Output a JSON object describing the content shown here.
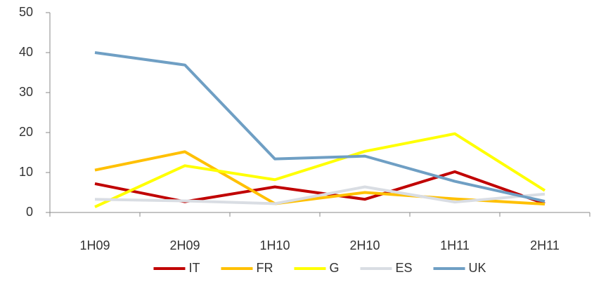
{
  "chart_data": {
    "type": "line",
    "categories": [
      "1H09",
      "2H09",
      "1H10",
      "2H10",
      "1H11",
      "2H11"
    ],
    "series": [
      {
        "name": "IT",
        "color": "#c00000",
        "values": [
          7.2,
          2.7,
          6.4,
          3.3,
          10.2,
          2.2
        ]
      },
      {
        "name": "FR",
        "color": "#ffc000",
        "values": [
          10.6,
          15.2,
          2.2,
          5.0,
          3.4,
          2.1
        ]
      },
      {
        "name": "G",
        "color": "#ffff00",
        "values": [
          1.4,
          11.7,
          8.2,
          15.3,
          19.7,
          5.5
        ]
      },
      {
        "name": "ES",
        "color": "#d9dde3",
        "values": [
          3.3,
          2.9,
          2.2,
          6.4,
          2.6,
          4.6
        ]
      },
      {
        "name": "UK",
        "color": "#6f9fc4",
        "values": [
          40.0,
          36.9,
          13.4,
          14.1,
          7.8,
          2.8
        ]
      }
    ],
    "ylim": [
      0,
      50
    ],
    "yticks": [
      0,
      10,
      20,
      30,
      40,
      50
    ],
    "grid": false,
    "legend": "bottom"
  }
}
